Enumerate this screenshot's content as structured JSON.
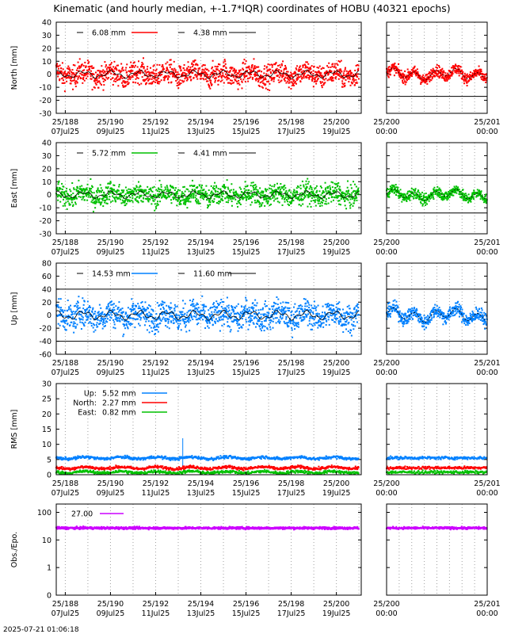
{
  "title": "Kinematic (and hourly median, +-1.7*IQR) coordinates of HOBU (40321 epochs)",
  "footer_timestamp": "2025-07-21 01:06:18",
  "colors": {
    "north": "#ff0000",
    "east": "#00c000",
    "up": "#0080ff",
    "obs": "#cc00ff",
    "median": "#000000",
    "grid": "#a0a0a0"
  },
  "chart_data": [
    {
      "id": "north",
      "type": "scatter",
      "ylabel": "North [mm]",
      "ylim": [
        -30,
        40
      ],
      "yticks": [
        "-30",
        "-20",
        "-10",
        "0",
        "10",
        "20",
        "30",
        "40"
      ],
      "iqr_band": [
        -17,
        17
      ],
      "series": [
        {
          "name": "6.08 mm",
          "color": "#ff0000",
          "spread": 6.08
        },
        {
          "name": "4.38 mm",
          "color": "#000000",
          "kind": "median"
        }
      ]
    },
    {
      "id": "east",
      "type": "scatter",
      "ylabel": "East [mm]",
      "ylim": [
        -30,
        40
      ],
      "yticks": [
        "-30",
        "-20",
        "-10",
        "0",
        "10",
        "20",
        "30",
        "40"
      ],
      "iqr_band": [
        -14,
        15
      ],
      "series": [
        {
          "name": "5.72 mm",
          "color": "#00c000",
          "spread": 5.72
        },
        {
          "name": "4.41 mm",
          "color": "#000000",
          "kind": "median"
        }
      ]
    },
    {
      "id": "up",
      "type": "scatter",
      "ylabel": "Up [mm]",
      "ylim": [
        -60,
        80
      ],
      "yticks": [
        "-60",
        "-40",
        "-20",
        "0",
        "20",
        "40",
        "60",
        "80"
      ],
      "iqr_band": [
        -40,
        40
      ],
      "series": [
        {
          "name": "14.53 mm",
          "color": "#0080ff",
          "spread": 14.53
        },
        {
          "name": "11.60 mm",
          "color": "#000000",
          "kind": "median"
        }
      ]
    },
    {
      "id": "rms",
      "type": "line",
      "ylabel": "RMS [mm]",
      "ylim": [
        0,
        30
      ],
      "yticks": [
        "0",
        "5",
        "10",
        "15",
        "20",
        "25",
        "30"
      ],
      "series": [
        {
          "name": "Up:",
          "value_label": "5.52 mm",
          "color": "#0080ff",
          "level": 5.52
        },
        {
          "name": "North:",
          "value_label": "2.27 mm",
          "color": "#ff0000",
          "level": 2.27
        },
        {
          "name": "East:",
          "value_label": "0.82 mm",
          "color": "#00c000",
          "level": 0.82
        }
      ]
    },
    {
      "id": "obs",
      "type": "scatter",
      "ylabel": "Obs./Epo.",
      "log_scale": true,
      "ylim": [
        0.1,
        200
      ],
      "yticks": [
        "0",
        "1",
        "10",
        "100"
      ],
      "series": [
        {
          "name": "27.00",
          "color": "#cc00ff",
          "level": 27.0
        }
      ]
    }
  ],
  "x_axis_main": {
    "range": [
      "25/187.6",
      "25/201.1"
    ],
    "ticks": [
      {
        "doy": "25/188",
        "date": "07Jul25"
      },
      {
        "doy": "25/190",
        "date": "09Jul25"
      },
      {
        "doy": "25/192",
        "date": "11Jul25"
      },
      {
        "doy": "25/194",
        "date": "13Jul25"
      },
      {
        "doy": "25/196",
        "date": "15Jul25"
      },
      {
        "doy": "25/198",
        "date": "17Jul25"
      },
      {
        "doy": "25/200",
        "date": "19Jul25"
      }
    ]
  },
  "x_axis_zoom": {
    "ticks": [
      {
        "doy": "25/200",
        "time": "00:00"
      },
      {
        "doy": "25/201",
        "time": "00:00"
      }
    ]
  }
}
